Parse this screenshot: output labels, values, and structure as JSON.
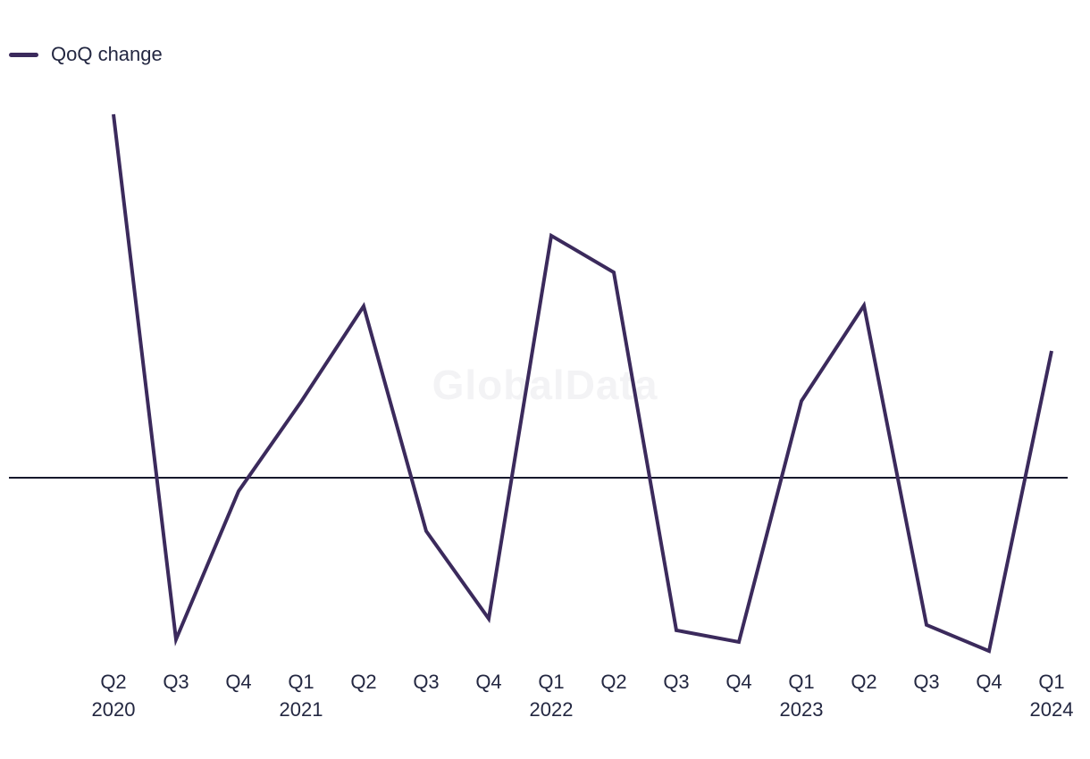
{
  "chart_data": {
    "type": "line",
    "title": "",
    "watermark": "GlobalData",
    "grid": false,
    "legend": {
      "position": "top-left",
      "items": [
        {
          "label": "QoQ change",
          "color": "#3b2a5c"
        }
      ]
    },
    "categories": [
      "Q2 2020",
      "Q3 2020",
      "Q4 2020",
      "Q1 2021",
      "Q2 2021",
      "Q3 2021",
      "Q4 2021",
      "Q1 2022",
      "Q2 2022",
      "Q3 2022",
      "Q4 2022",
      "Q1 2023",
      "Q2 2023",
      "Q3 2023",
      "Q4 2023",
      "Q1 2024"
    ],
    "x_ticks": [
      {
        "quarter": "Q2",
        "year": "2020"
      },
      {
        "quarter": "Q3",
        "year": ""
      },
      {
        "quarter": "Q4",
        "year": ""
      },
      {
        "quarter": "Q1",
        "year": "2021"
      },
      {
        "quarter": "Q2",
        "year": ""
      },
      {
        "quarter": "Q3",
        "year": ""
      },
      {
        "quarter": "Q4",
        "year": ""
      },
      {
        "quarter": "Q1",
        "year": "2022"
      },
      {
        "quarter": "Q2",
        "year": ""
      },
      {
        "quarter": "Q3",
        "year": ""
      },
      {
        "quarter": "Q4",
        "year": ""
      },
      {
        "quarter": "Q1",
        "year": "2023"
      },
      {
        "quarter": "Q2",
        "year": ""
      },
      {
        "quarter": "Q3",
        "year": ""
      },
      {
        "quarter": "Q4",
        "year": ""
      },
      {
        "quarter": "Q1",
        "year": "2024"
      }
    ],
    "series": [
      {
        "name": "QoQ change",
        "color": "#3b2a5c",
        "values": [
          100,
          -44.5,
          -3.7,
          20.9,
          47.2,
          -14.7,
          -38.8,
          66.6,
          56.5,
          -42.0,
          -45.2,
          21.1,
          47.4,
          -40.5,
          -47.7,
          34.9
        ]
      }
    ],
    "y_axis": {
      "visible": false,
      "baseline": 0,
      "ylim": [
        -55,
        105
      ],
      "note": "y-axis unlabeled in source chart; values are relative units estimated from plot geometry with the Q2 2020 peak defined as 100"
    }
  },
  "colors": {
    "line": "#3b2a5c",
    "axis": "#16182c",
    "text": "#232741",
    "watermark": "#f3f3f5",
    "background": "#ffffff"
  }
}
